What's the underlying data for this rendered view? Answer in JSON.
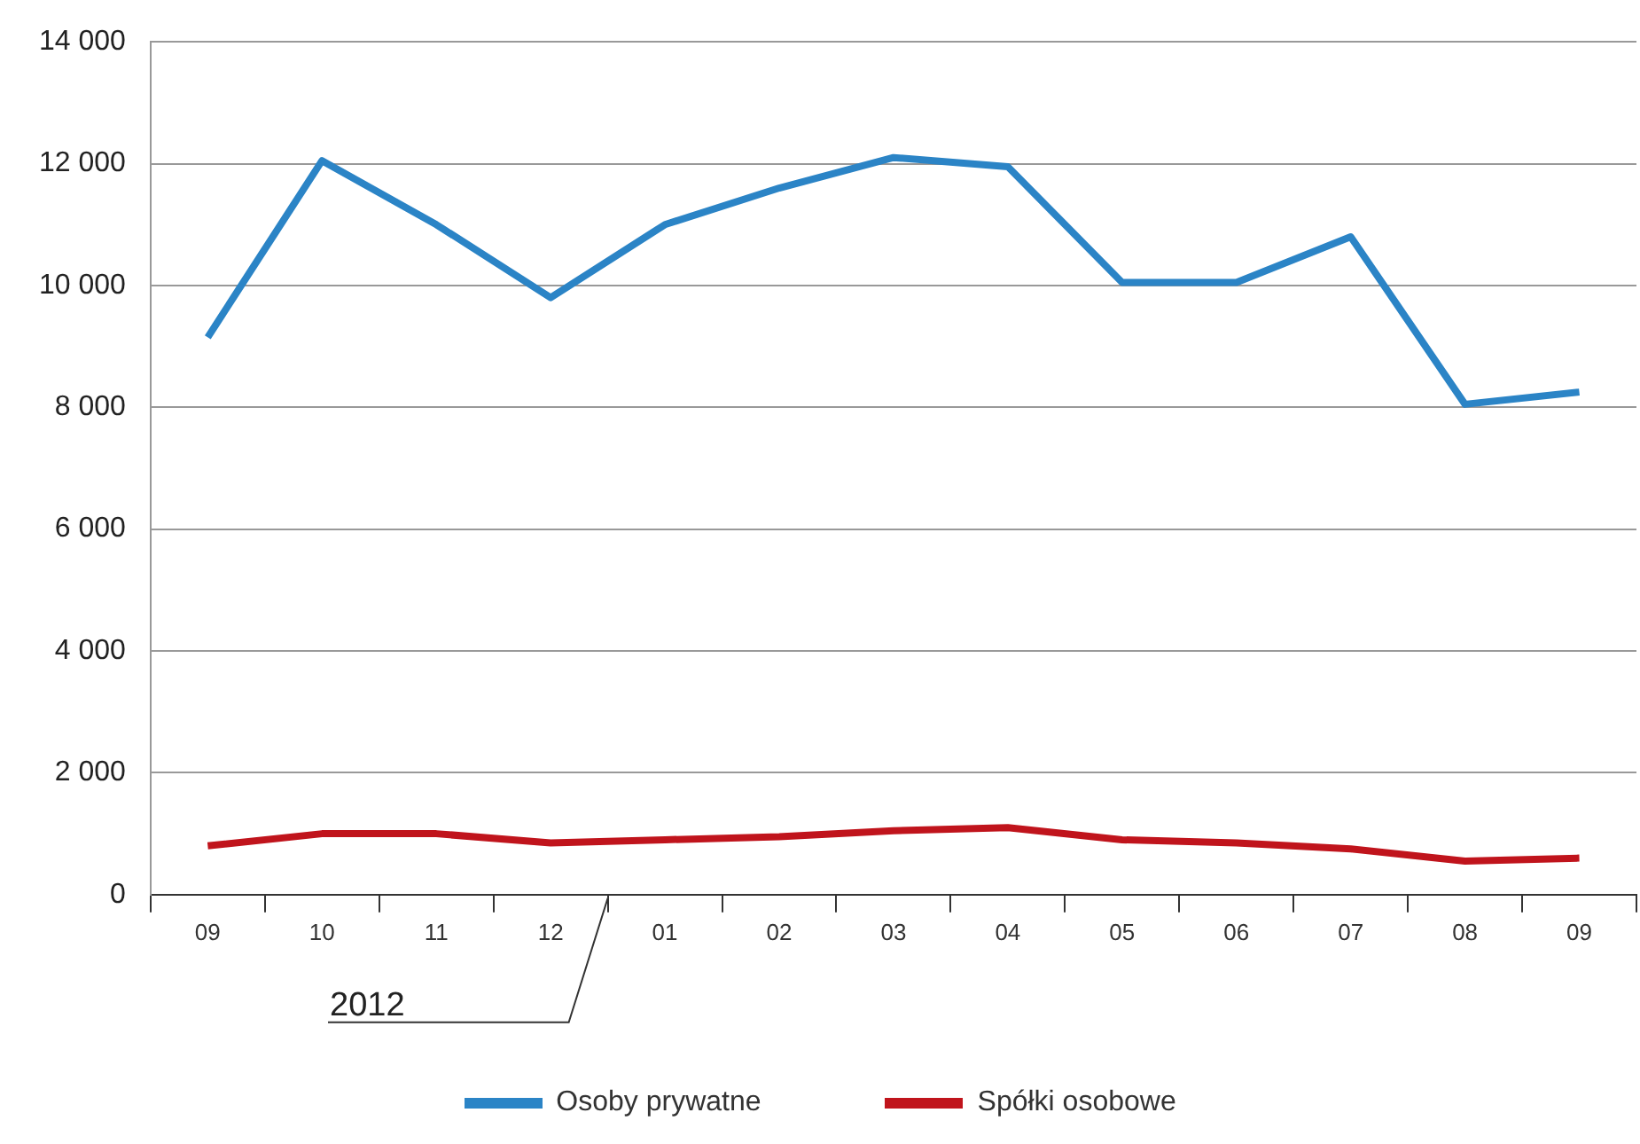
{
  "chart_data": {
    "type": "line",
    "categories": [
      "09",
      "10",
      "11",
      "12",
      "01",
      "02",
      "03",
      "04",
      "05",
      "06",
      "07",
      "08",
      "09"
    ],
    "series": [
      {
        "name": "Osoby prywatne",
        "color": "#2b84c6",
        "values": [
          9150,
          12050,
          11000,
          9800,
          11000,
          11600,
          12100,
          11950,
          10050,
          10050,
          10800,
          8050,
          8250
        ]
      },
      {
        "name": "Spółki osobowe",
        "color": "#c0141c",
        "values": [
          800,
          1000,
          1000,
          850,
          900,
          950,
          1050,
          1100,
          900,
          850,
          750,
          550,
          600
        ]
      }
    ],
    "ylim": [
      0,
      14000
    ],
    "yticks": [
      {
        "value": 0,
        "label": "0"
      },
      {
        "value": 2000,
        "label": "2 000"
      },
      {
        "value": 4000,
        "label": "4 000"
      },
      {
        "value": 6000,
        "label": "6 000"
      },
      {
        "value": 8000,
        "label": "8 000"
      },
      {
        "value": 10000,
        "label": "10 000"
      },
      {
        "value": 12000,
        "label": "12 000"
      },
      {
        "value": 14000,
        "label": "14 000"
      }
    ],
    "grid": "y",
    "legend": "bottom",
    "marker": "none",
    "line_style": "solid",
    "annotations": [
      "2012"
    ]
  }
}
